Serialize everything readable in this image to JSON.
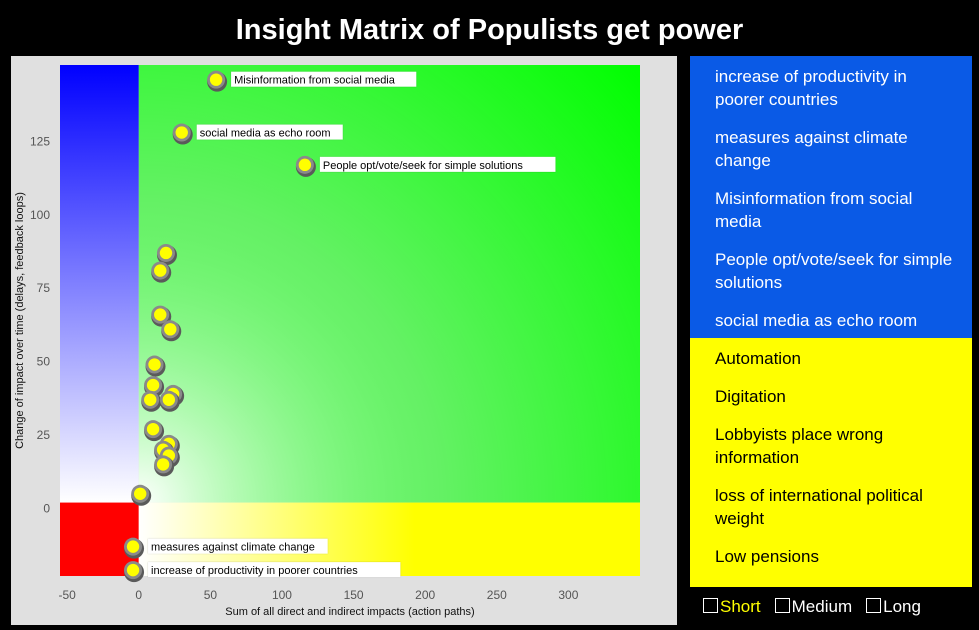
{
  "title": "Insight Matrix of Populists get power",
  "sidebar": {
    "items": [
      {
        "label": "increase of productivity in poorer countries",
        "group": "blue"
      },
      {
        "label": "measures against climate change",
        "group": "blue"
      },
      {
        "label": "Misinformation from social media",
        "group": "blue"
      },
      {
        "label": "People opt/vote/seek for simple solutions",
        "group": "blue"
      },
      {
        "label": "social media as echo room",
        "group": "blue"
      },
      {
        "label": "Automation",
        "group": "yellow"
      },
      {
        "label": "Digitation",
        "group": "yellow"
      },
      {
        "label": "Lobbyists place wrong information",
        "group": "yellow"
      },
      {
        "label": "loss of international political weight",
        "group": "yellow"
      },
      {
        "label": "Low pensions",
        "group": "yellow"
      }
    ]
  },
  "filters": [
    {
      "label": "Short",
      "active": true
    },
    {
      "label": "Medium",
      "active": false
    },
    {
      "label": "Long",
      "active": false
    }
  ],
  "colors": {
    "blue_group": "#0a5ae6",
    "yellow_group": "#ffff00",
    "quadrant_top_left": "#0000ff",
    "quadrant_top_right": "#00ff00",
    "quadrant_bottom_left": "#ff0000",
    "quadrant_bottom_right": "#ffff00",
    "point": "#ffff00"
  },
  "chart_data": {
    "type": "scatter",
    "xlabel": "Sum of all direct and indirect impacts (action paths)",
    "ylabel": "Change of impact over time (delays, feedback loops)",
    "xlim": [
      -55,
      350
    ],
    "ylim": [
      -23,
      151
    ],
    "xticks": [
      -50,
      0,
      50,
      100,
      150,
      200,
      250,
      300
    ],
    "yticks": [
      0,
      25,
      50,
      75,
      100,
      125
    ],
    "quadrant_split": {
      "x": 0,
      "y": 2
    },
    "grid": false,
    "points": [
      {
        "x": 54,
        "y": 146,
        "label": "Misinformation from social media"
      },
      {
        "x": 30,
        "y": 128,
        "label": "social media as echo room"
      },
      {
        "x": 116,
        "y": 117,
        "label": "People opt/vote/seek for simple solutions"
      },
      {
        "x": 19,
        "y": 87,
        "label": ""
      },
      {
        "x": 15,
        "y": 81,
        "label": ""
      },
      {
        "x": 15,
        "y": 66,
        "label": ""
      },
      {
        "x": 22,
        "y": 61,
        "label": ""
      },
      {
        "x": 11,
        "y": 49,
        "label": ""
      },
      {
        "x": 10,
        "y": 42,
        "label": ""
      },
      {
        "x": 24,
        "y": 39,
        "label": ""
      },
      {
        "x": 8,
        "y": 37,
        "label": ""
      },
      {
        "x": 21,
        "y": 37,
        "label": ""
      },
      {
        "x": 10,
        "y": 27,
        "label": ""
      },
      {
        "x": 21,
        "y": 22,
        "label": ""
      },
      {
        "x": 17,
        "y": 20,
        "label": ""
      },
      {
        "x": 21,
        "y": 18,
        "label": ""
      },
      {
        "x": 17,
        "y": 15,
        "label": ""
      },
      {
        "x": 1,
        "y": 5,
        "label": ""
      },
      {
        "x": -4,
        "y": -13,
        "label": "measures against climate change"
      },
      {
        "x": -4,
        "y": -21,
        "label": "increase of productivity in poorer countries"
      }
    ]
  }
}
